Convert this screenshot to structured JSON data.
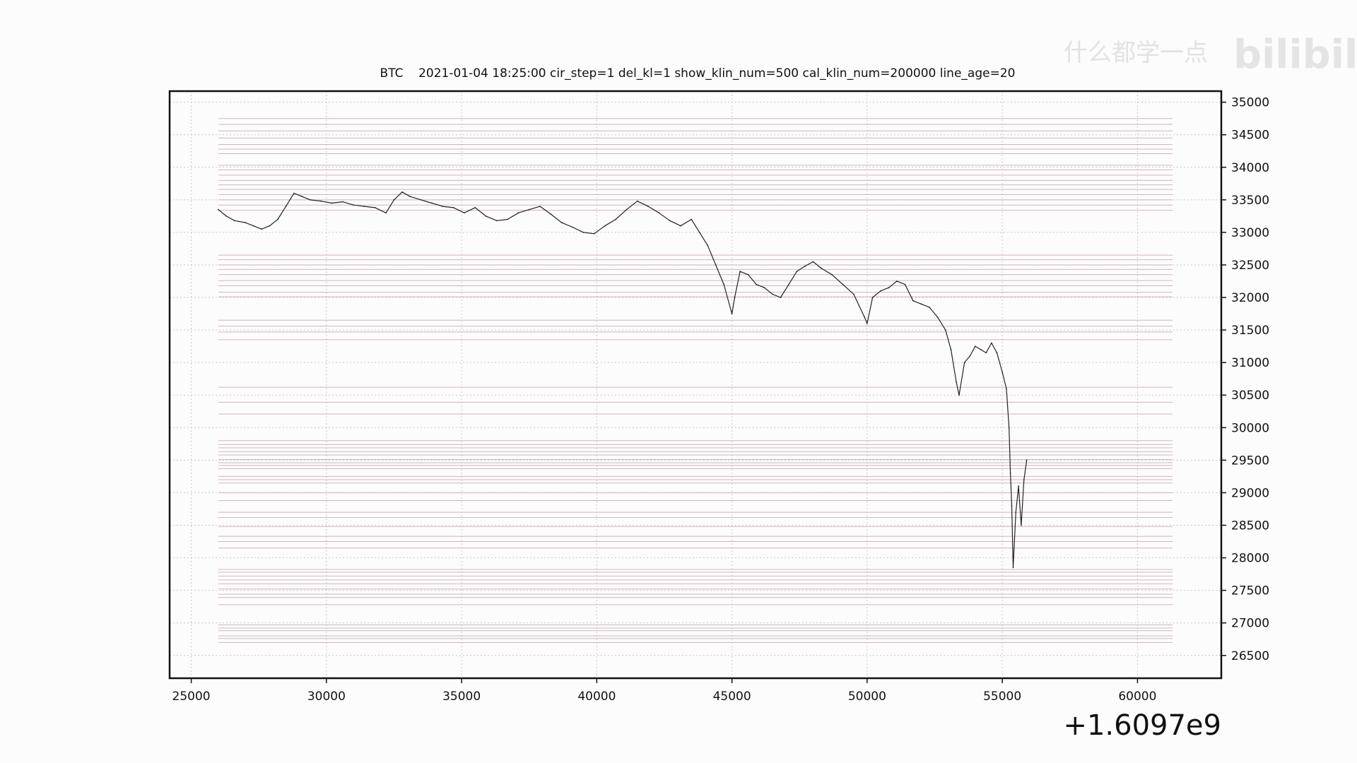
{
  "watermark": {
    "text": "什么都学一点",
    "logo": "bilibili"
  },
  "chart_data": {
    "type": "line",
    "title": "BTC    2021-01-04 18:25:00 cir_step=1 del_kl=1 show_klin_num=500 cal_klin_num=200000 line_age=20",
    "xlabel": "",
    "ylabel": "",
    "x_offset_label": "+1.6097e9",
    "xlim": [
      24200,
      63100
    ],
    "ylim": [
      26150,
      35170
    ],
    "xticks": [
      25000,
      30000,
      35000,
      40000,
      45000,
      50000,
      55000,
      60000
    ],
    "xtick_labels": [
      "25000",
      "30000",
      "35000",
      "40000",
      "45000",
      "50000",
      "55000",
      "60000"
    ],
    "yticks": [
      26500,
      27000,
      27500,
      28000,
      28500,
      29000,
      29500,
      30000,
      30500,
      31000,
      31500,
      32000,
      32500,
      33000,
      33500,
      34000,
      34500,
      35000
    ],
    "ytick_labels": [
      "26500",
      "27000",
      "27500",
      "28000",
      "28500",
      "29000",
      "29500",
      "30000",
      "30500",
      "31000",
      "31500",
      "32000",
      "32500",
      "33000",
      "33500",
      "34000",
      "34500",
      "35000"
    ],
    "grid": true,
    "y_axis_side": "right",
    "colors": {
      "price": "#222222",
      "levels": "#c9a9b4",
      "grid": "#c8c8c8"
    },
    "level_lines": {
      "x_range": [
        26000,
        61300
      ],
      "y_values": [
        34750,
        34660,
        34560,
        34450,
        34350,
        34280,
        34210,
        34030,
        33960,
        33880,
        33800,
        33730,
        33660,
        33580,
        33500,
        33420,
        33340,
        32650,
        32580,
        32500,
        32430,
        32350,
        32260,
        32180,
        32080,
        32010,
        31650,
        31560,
        31470,
        31350,
        30620,
        30390,
        30210,
        29800,
        29740,
        29690,
        29630,
        29580,
        29510,
        29460,
        29420,
        29370,
        29250,
        29200,
        29150,
        29000,
        28880,
        28700,
        28620,
        28480,
        28330,
        28250,
        28150,
        27820,
        27780,
        27720,
        27660,
        27600,
        27520,
        27440,
        27390,
        27280,
        26970,
        26920,
        26880,
        26800,
        26760,
        26700
      ]
    },
    "series": [
      {
        "values_description_free": true,
        "x": [
          26000,
          26300,
          26600,
          27000,
          27300,
          27600,
          27900,
          28200,
          28500,
          28800,
          29100,
          29400,
          29800,
          30200,
          30600,
          31000,
          31400,
          31800,
          32200,
          32500,
          32800,
          33100,
          33500,
          33900,
          34300,
          34700,
          35100,
          35500,
          35900,
          36300,
          36700,
          37100,
          37500,
          37900,
          38300,
          38700,
          39100,
          39500,
          39900,
          40300,
          40700,
          41100,
          41500,
          41900,
          42300,
          42700,
          43100,
          43500,
          43800,
          44100,
          44400,
          44700,
          45000,
          45100,
          45300,
          45600,
          45900,
          46200,
          46500,
          46800,
          47100,
          47400,
          47700,
          48000,
          48300,
          48700,
          49100,
          49500,
          49900,
          50000,
          50200,
          50500,
          50800,
          51100,
          51400,
          51700,
          52000,
          52300,
          52600,
          52900,
          53100,
          53300,
          53400,
          53600,
          53800,
          54000,
          54200,
          54400,
          54600,
          54800,
          55000,
          55150,
          55250,
          55300,
          55350,
          55400,
          55500,
          55600,
          55700,
          55800,
          55900
        ],
        "y": [
          33350,
          33250,
          33180,
          33150,
          33100,
          33050,
          33100,
          33200,
          33400,
          33600,
          33550,
          33500,
          33480,
          33450,
          33470,
          33420,
          33400,
          33380,
          33300,
          33500,
          33620,
          33550,
          33500,
          33450,
          33400,
          33380,
          33300,
          33380,
          33250,
          33180,
          33200,
          33300,
          33350,
          33400,
          33280,
          33150,
          33080,
          33000,
          32980,
          33100,
          33200,
          33350,
          33480,
          33400,
          33300,
          33180,
          33100,
          33200,
          33000,
          32800,
          32500,
          32200,
          31750,
          32000,
          32400,
          32350,
          32200,
          32150,
          32050,
          32000,
          32200,
          32400,
          32480,
          32550,
          32450,
          32350,
          32200,
          32050,
          31700,
          31600,
          32000,
          32100,
          32150,
          32250,
          32200,
          31950,
          31900,
          31850,
          31700,
          31500,
          31200,
          30700,
          30500,
          31000,
          31100,
          31250,
          31200,
          31150,
          31300,
          31150,
          30850,
          30600,
          30000,
          29300,
          28800,
          27850,
          28700,
          29100,
          28500,
          29200,
          29500
        ]
      }
    ]
  }
}
